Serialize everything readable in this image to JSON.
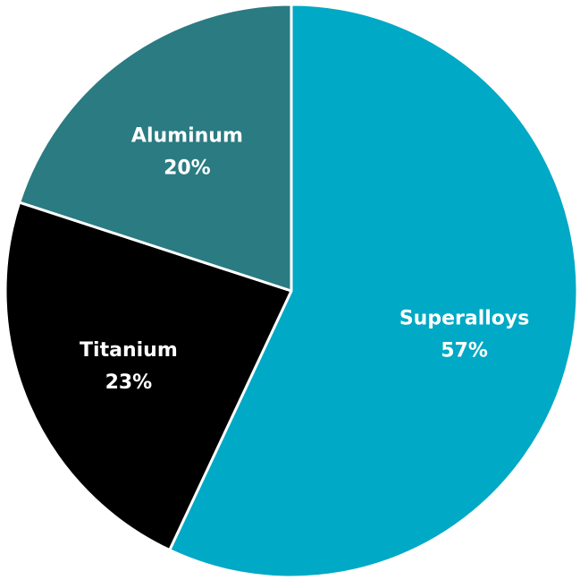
{
  "chart_data": {
    "type": "pie",
    "start_angle_deg": 0,
    "direction": "clockwise",
    "slices": [
      {
        "label": "Superalloys",
        "value": 57,
        "value_label": "57%",
        "color": "#00A9C5"
      },
      {
        "label": "Titanium",
        "value": 23,
        "value_label": "23%",
        "color": "#000000"
      },
      {
        "label": "Aluminum",
        "value": 20,
        "value_label": "20%",
        "color": "#2A7B82"
      }
    ]
  }
}
